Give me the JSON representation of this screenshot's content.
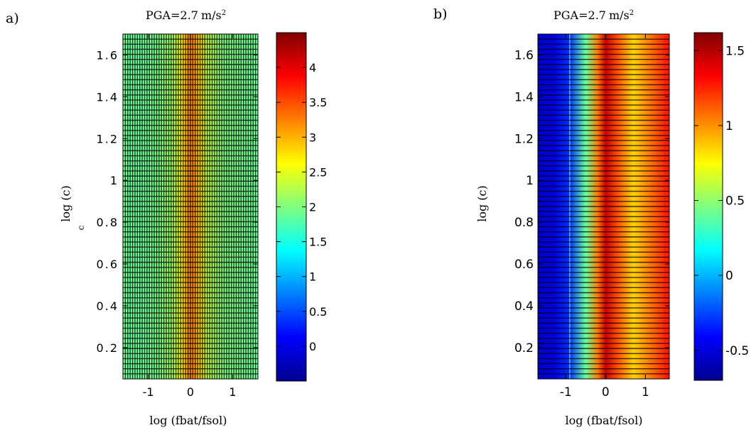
{
  "chart_data": [
    {
      "panel_label": "a)",
      "type": "heatmap",
      "title": "PGA=2.7",
      "title_unit": "m/s",
      "title_unit_sup": "2",
      "xlabel": "log (fbat/fsol)",
      "ylabel": "log (c)",
      "ylabel_extra": "c",
      "xlim": [
        -1.6,
        1.6
      ],
      "ylim": [
        0.05,
        1.7
      ],
      "xticks": [
        -1,
        0,
        1
      ],
      "xtick_labels": [
        "-1",
        "0",
        "1"
      ],
      "yticks": [
        0.2,
        0.4,
        0.6,
        0.8,
        1.0,
        1.2,
        1.4,
        1.6
      ],
      "ytick_labels": [
        "0.2",
        "0.4",
        "0.6",
        "0.8",
        "1",
        "1.2",
        "1.4",
        "1.6"
      ],
      "colorbar": {
        "range": [
          -0.5,
          4.5
        ],
        "ticks": [
          0,
          0.5,
          1,
          1.5,
          2,
          2.5,
          3,
          3.5,
          4
        ],
        "tick_labels": [
          "0",
          "0.5",
          "1",
          "1.5",
          "2",
          "2.5",
          "3",
          "3.5",
          "4"
        ]
      },
      "profile": {
        "x": [
          -1.6,
          -1.2,
          -0.8,
          -0.4,
          -0.2,
          0,
          0.2,
          0.4,
          0.8,
          1.2,
          1.6
        ],
        "value": [
          1.9,
          1.9,
          1.95,
          2.2,
          2.7,
          3.3,
          2.9,
          2.3,
          2.0,
          1.95,
          1.9
        ]
      },
      "grid_x_lines": 56,
      "grid_y_lines": 68
    },
    {
      "panel_label": "b)",
      "type": "heatmap",
      "title": "PGA=2.7",
      "title_unit": "m/s",
      "title_unit_sup": "2",
      "xlabel": "log (fbat/fsol)",
      "ylabel": "log (c)",
      "xlim": [
        -1.7,
        1.6
      ],
      "ylim": [
        0.05,
        1.7
      ],
      "xticks": [
        -1,
        0,
        1
      ],
      "xtick_labels": [
        "-1",
        "0",
        "1"
      ],
      "yticks": [
        0.2,
        0.4,
        0.6,
        0.8,
        1.0,
        1.2,
        1.4,
        1.6
      ],
      "ytick_labels": [
        "0.2",
        "0.4",
        "0.6",
        "0.8",
        "1",
        "1.2",
        "1.4",
        "1.6"
      ],
      "colorbar": {
        "range": [
          -0.7,
          1.62
        ],
        "ticks": [
          -0.5,
          0,
          0.5,
          1,
          1.5
        ],
        "tick_labels": [
          "-0.5",
          "0",
          "0.5",
          "1",
          "1.5"
        ]
      },
      "profile": {
        "x": [
          -1.7,
          -1.3,
          -0.9,
          -0.5,
          -0.2,
          0,
          0.3,
          0.7,
          1.1,
          1.6
        ],
        "value": [
          -0.55,
          -0.5,
          -0.3,
          0.4,
          1.05,
          1.45,
          1.15,
          0.85,
          1.05,
          1.3
        ]
      },
      "grid_x_lines": 0,
      "grid_y_lines": 68
    }
  ]
}
